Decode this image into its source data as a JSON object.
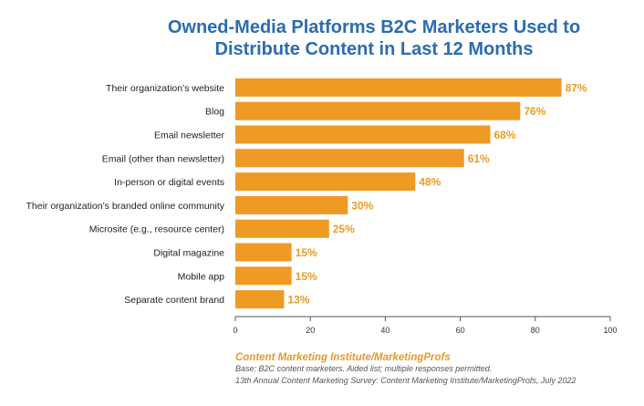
{
  "title_lines": [
    "Owned-Media Platforms B2C Marketers Used to",
    "Distribute Content in Last 12 Months"
  ],
  "colors": {
    "bar": "#EE9A24",
    "title": "#2B6CB0",
    "value_label": "#EE9A24",
    "axis": "#555555"
  },
  "chart_data": {
    "type": "bar",
    "orientation": "horizontal",
    "categories": [
      "Their organization’s website",
      "Blog",
      "Email newsletter",
      "Email (other than newsletter)",
      "In-person or digital events",
      "Their organization’s branded online community",
      "Microsite (e.g., resource center)",
      "Digital magazine",
      "Mobile app",
      "Separate content brand"
    ],
    "values": [
      87,
      76,
      68,
      61,
      48,
      30,
      25,
      15,
      15,
      13
    ],
    "value_labels": [
      "87%",
      "76%",
      "68%",
      "61%",
      "48%",
      "30%",
      "25%",
      "15%",
      "15%",
      "13%"
    ],
    "xlim": [
      0,
      100
    ],
    "xticks": [
      0,
      20,
      40,
      60,
      80,
      100
    ],
    "xlabel": "",
    "ylabel": "",
    "grid": false
  },
  "footer": {
    "source": "Content Marketing Institute/MarketingProfs",
    "base_note": "Base: B2C content marketers. Aided list; multiple responses permitted.",
    "survey_note": "13th Annual Content Marketing Survey: Content Marketing Institute/MarketingProfs, July 2022"
  }
}
